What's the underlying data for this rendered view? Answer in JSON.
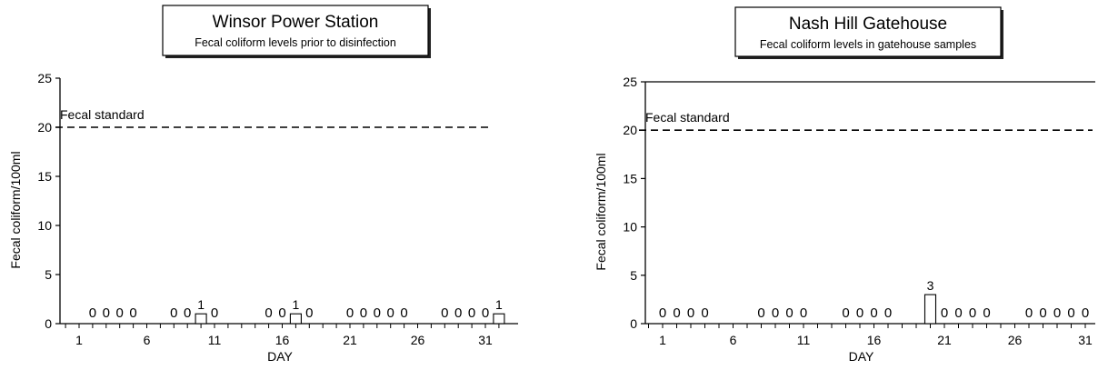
{
  "chart_data": [
    {
      "type": "bar",
      "title": "Winsor Power Station",
      "subtitle": "Fecal coliform levels prior to disinfection",
      "xlabel": "DAY",
      "ylabel": "Fecal coliform/100ml",
      "ylim": [
        0,
        25
      ],
      "y_ticks": [
        0,
        5,
        10,
        15,
        20,
        25
      ],
      "xlim": [
        1,
        31
      ],
      "x_ticks": [
        1,
        6,
        11,
        16,
        21,
        26,
        31
      ],
      "annotations": [
        {
          "text": "Fecal standard",
          "y": 20
        }
      ],
      "reference_line": {
        "y": 20,
        "style": "dashed"
      },
      "top_border": false,
      "bars": [
        {
          "x": 2,
          "value": 0
        },
        {
          "x": 3,
          "value": 0
        },
        {
          "x": 4,
          "value": 0
        },
        {
          "x": 5,
          "value": 0
        },
        {
          "x": 8,
          "value": 0
        },
        {
          "x": 9,
          "value": 0
        },
        {
          "x": 10,
          "value": 1
        },
        {
          "x": 11,
          "value": 0
        },
        {
          "x": 15,
          "value": 0
        },
        {
          "x": 16,
          "value": 0
        },
        {
          "x": 17,
          "value": 1
        },
        {
          "x": 18,
          "value": 0
        },
        {
          "x": 21,
          "value": 0
        },
        {
          "x": 22,
          "value": 0
        },
        {
          "x": 23,
          "value": 0
        },
        {
          "x": 24,
          "value": 0
        },
        {
          "x": 25,
          "value": 0
        },
        {
          "x": 28,
          "value": 0
        },
        {
          "x": 29,
          "value": 0
        },
        {
          "x": 30,
          "value": 0
        },
        {
          "x": 31,
          "value": 0
        },
        {
          "x": 32,
          "value": 1
        }
      ]
    },
    {
      "type": "bar",
      "title": "Nash Hill Gatehouse",
      "subtitle": "Fecal coliform levels in gatehouse samples",
      "xlabel": "DAY",
      "ylabel": "Fecal coliform/100ml",
      "ylim": [
        0,
        25
      ],
      "y_ticks": [
        0,
        5,
        10,
        15,
        20,
        25
      ],
      "xlim": [
        1,
        31
      ],
      "x_ticks": [
        1,
        6,
        11,
        16,
        21,
        26,
        31
      ],
      "annotations": [
        {
          "text": "Fecal standard",
          "y": 20
        }
      ],
      "reference_line": {
        "y": 20,
        "style": "dashed"
      },
      "top_border": true,
      "bars": [
        {
          "x": 1,
          "value": 0
        },
        {
          "x": 2,
          "value": 0
        },
        {
          "x": 3,
          "value": 0
        },
        {
          "x": 4,
          "value": 0
        },
        {
          "x": 8,
          "value": 0
        },
        {
          "x": 9,
          "value": 0
        },
        {
          "x": 10,
          "value": 0
        },
        {
          "x": 11,
          "value": 0
        },
        {
          "x": 14,
          "value": 0
        },
        {
          "x": 15,
          "value": 0
        },
        {
          "x": 16,
          "value": 0
        },
        {
          "x": 17,
          "value": 0
        },
        {
          "x": 20,
          "value": 3
        },
        {
          "x": 21,
          "value": 0
        },
        {
          "x": 22,
          "value": 0
        },
        {
          "x": 23,
          "value": 0
        },
        {
          "x": 24,
          "value": 0
        },
        {
          "x": 27,
          "value": 0
        },
        {
          "x": 28,
          "value": 0
        },
        {
          "x": 29,
          "value": 0
        },
        {
          "x": 30,
          "value": 0
        },
        {
          "x": 31,
          "value": 0
        }
      ]
    }
  ]
}
